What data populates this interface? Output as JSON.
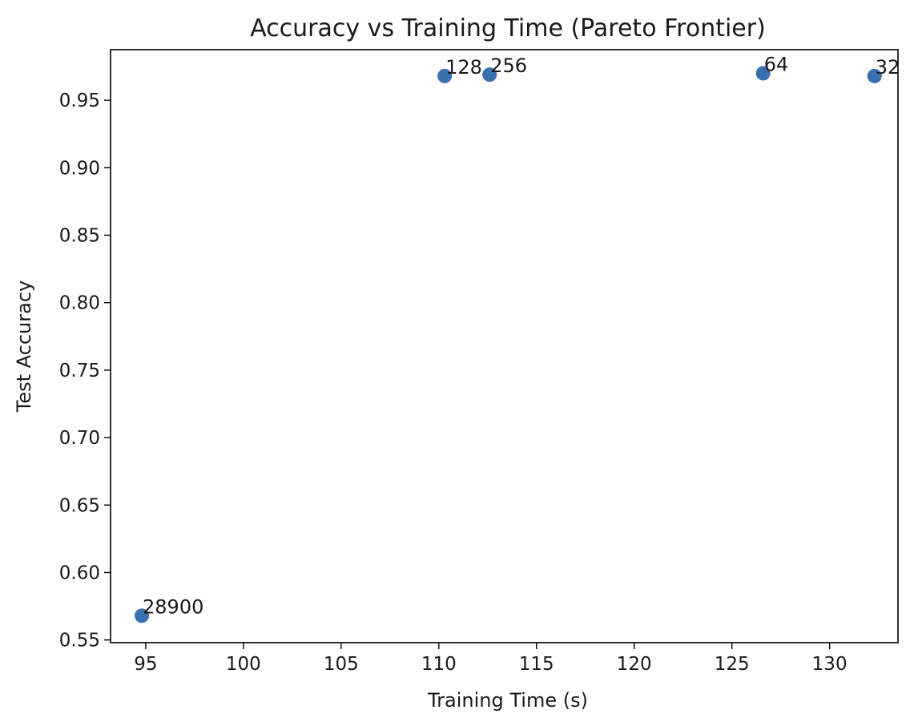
{
  "chart_data": {
    "type": "scatter",
    "title": "Accuracy vs Training Time (Pareto Frontier)",
    "xlabel": "Training Time (s)",
    "ylabel": "Test Accuracy",
    "xlim": [
      93.2,
      133.5
    ],
    "ylim": [
      0.548,
      0.9875
    ],
    "xticks": [
      95,
      100,
      105,
      110,
      115,
      120,
      125,
      130
    ],
    "xtick_labels": [
      "95",
      "100",
      "105",
      "110",
      "115",
      "120",
      "125",
      "130"
    ],
    "yticks": [
      0.55,
      0.6,
      0.65,
      0.7,
      0.75,
      0.8,
      0.85,
      0.9,
      0.95
    ],
    "ytick_labels": [
      "0.55",
      "0.60",
      "0.65",
      "0.70",
      "0.75",
      "0.80",
      "0.85",
      "0.90",
      "0.95"
    ],
    "grid": false,
    "marker_color": "#3a6fb0",
    "points": [
      {
        "x": 94.8,
        "y": 0.568,
        "label": "28900"
      },
      {
        "x": 110.3,
        "y": 0.968,
        "label": "128"
      },
      {
        "x": 112.6,
        "y": 0.969,
        "label": "256"
      },
      {
        "x": 126.6,
        "y": 0.97,
        "label": "64"
      },
      {
        "x": 132.3,
        "y": 0.968,
        "label": "32"
      }
    ]
  }
}
